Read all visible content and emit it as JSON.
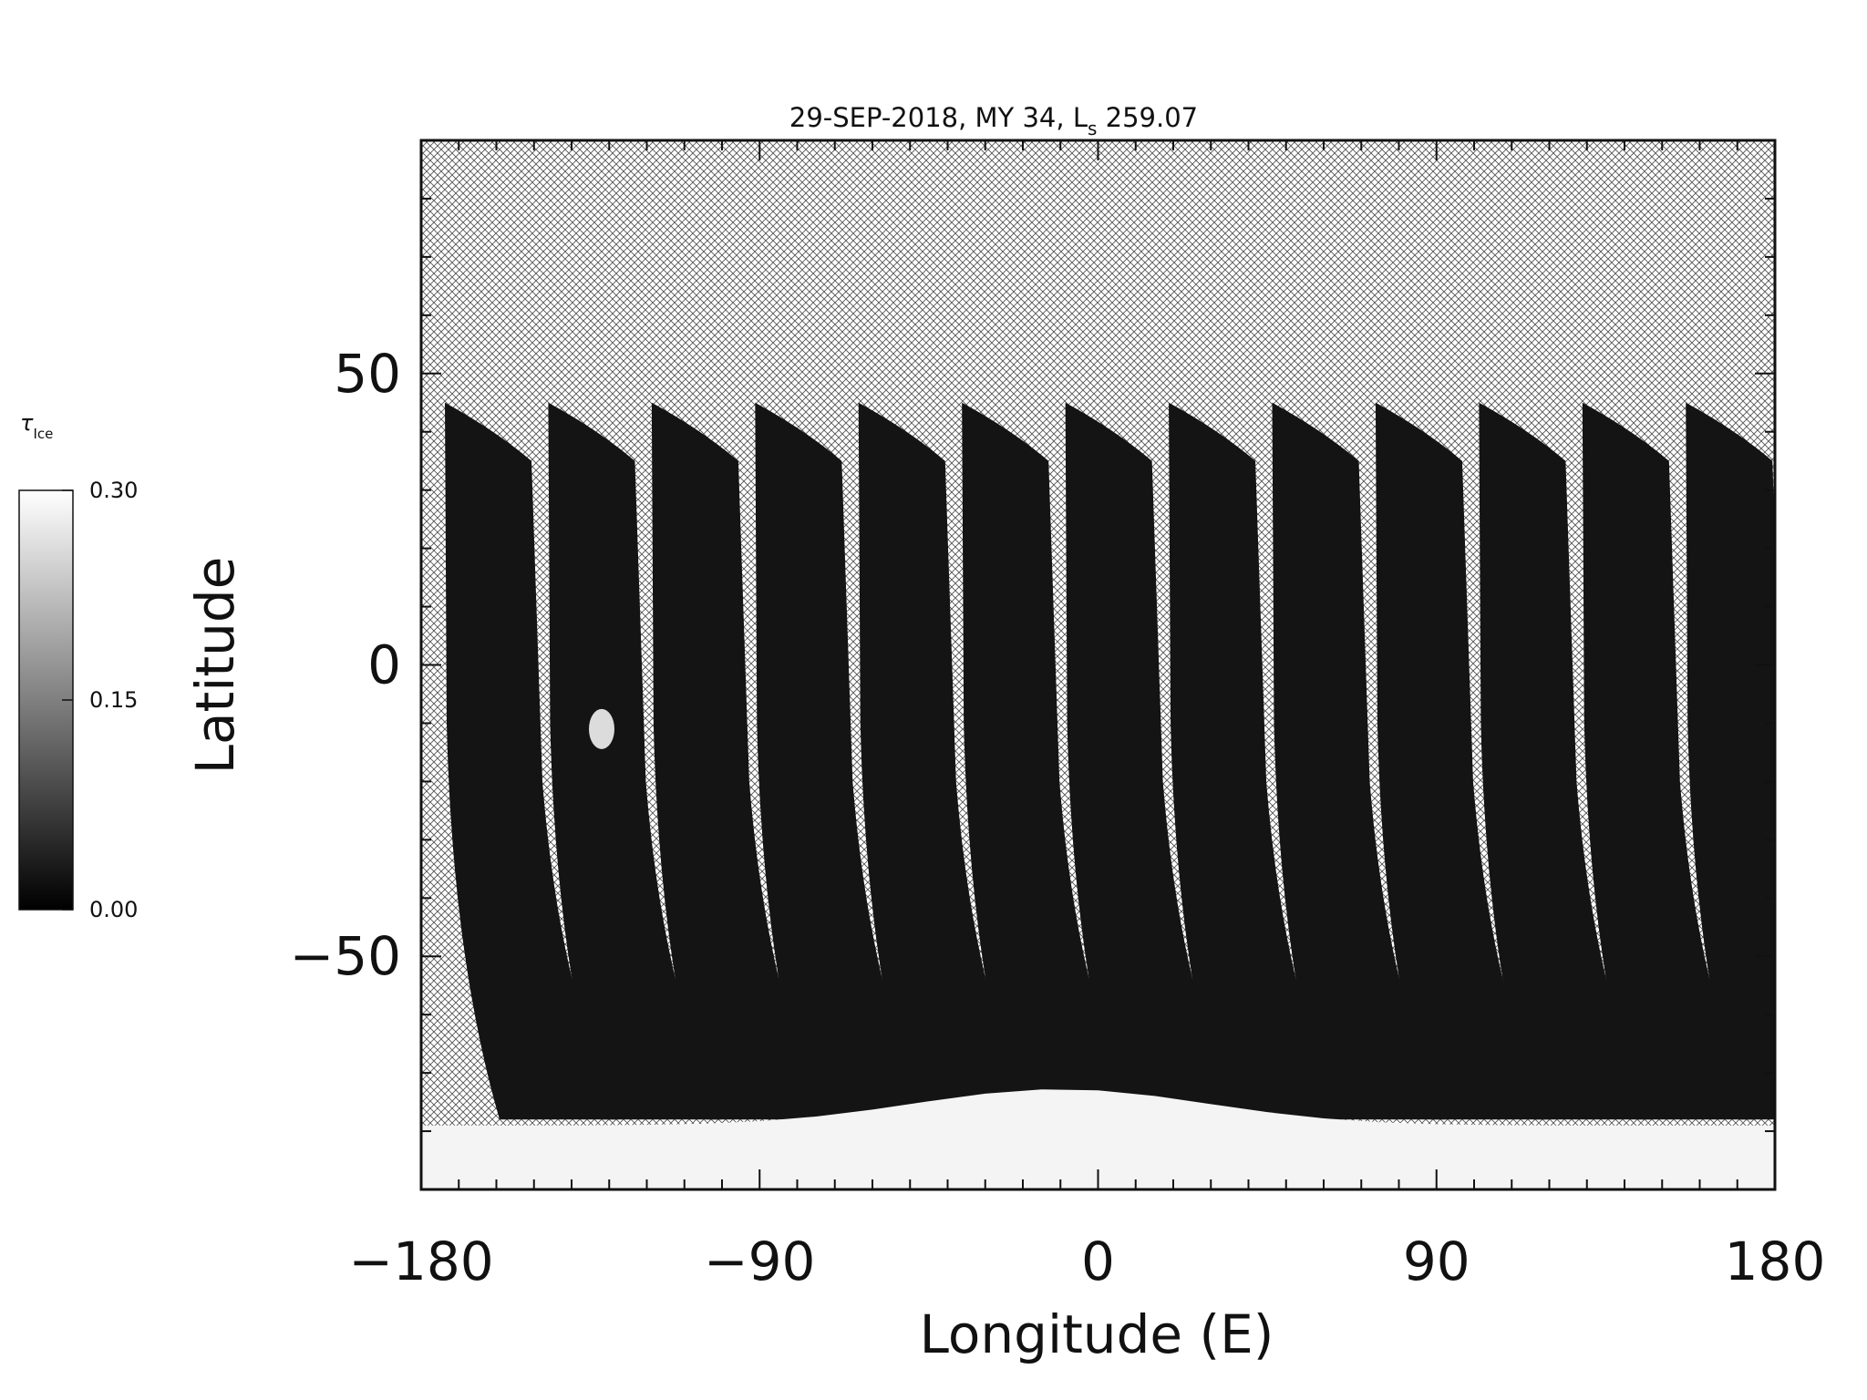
{
  "chart_data": {
    "type": "heatmap",
    "title": "29-SEP-2018, MY 34,  L",
    "title_subscript": "s",
    "title_suffix": " 259.07",
    "xlabel": "Longitude (E)",
    "ylabel": "Latitude",
    "xlim": [
      -180,
      180
    ],
    "ylim": [
      -90,
      90
    ],
    "x_ticks": [
      -180,
      -90,
      0,
      90,
      180
    ],
    "x_tick_labels": [
      "−180",
      "−90",
      "0",
      "90",
      "180"
    ],
    "y_ticks": [
      -50,
      0,
      50
    ],
    "y_tick_labels": [
      "−50",
      "0",
      "50"
    ],
    "x_minor_step": 10,
    "y_minor_step": 10,
    "no_data_pattern": "crosshatch",
    "colorbar": {
      "label": "τ",
      "label_subscript": "Ice",
      "range": [
        0.0,
        0.3
      ],
      "ticks": [
        0.0,
        0.15,
        0.3
      ],
      "tick_labels": [
        "0.00",
        "0.15",
        "0.30"
      ],
      "colormap": "grayscale"
    },
    "swaths": {
      "count": 13,
      "lon_spacing": 27.5,
      "start_lon": -180,
      "north_edge_lat": 45,
      "south_edge_lat": -78,
      "typical_tau": 0.01
    },
    "features": [
      {
        "name": "south polar cap / high ice opacity",
        "lat_range": [
          -90,
          -72
        ],
        "tau": 0.3
      },
      {
        "name": "isolated bright cloud",
        "lon": -132,
        "lat": -11,
        "tau": 0.25
      }
    ]
  }
}
